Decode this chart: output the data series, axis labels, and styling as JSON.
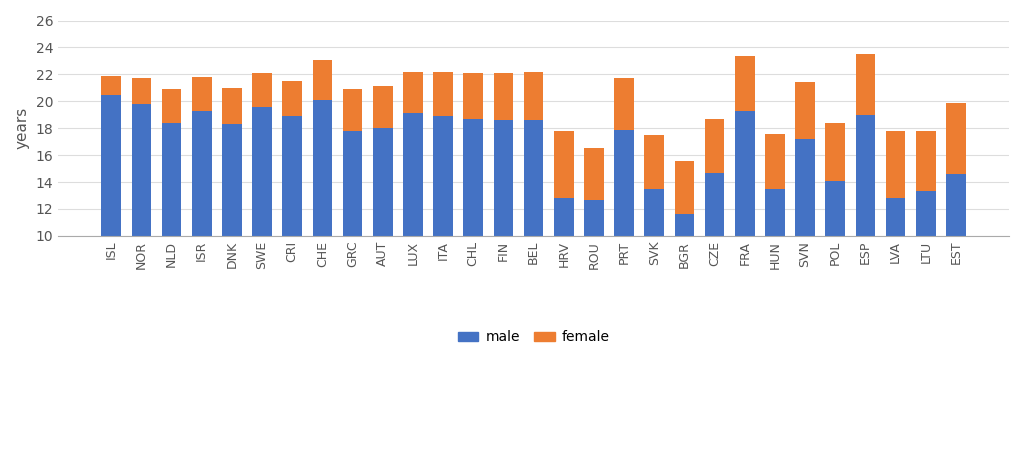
{
  "countries": [
    "ISL",
    "NOR",
    "NLD",
    "ISR",
    "DNK",
    "SWE",
    "CRI",
    "CHE",
    "GRC",
    "AUT",
    "LUX",
    "ITA",
    "CHL",
    "FIN",
    "BEL",
    "HRV",
    "ROU",
    "PRT",
    "SVK",
    "BGR",
    "CZE",
    "FRA",
    "HUN",
    "SVN",
    "POL",
    "ESP",
    "LVA",
    "LTU",
    "EST"
  ],
  "male": [
    20.5,
    19.8,
    18.4,
    19.3,
    18.3,
    19.6,
    18.9,
    20.1,
    17.8,
    18.0,
    19.1,
    18.9,
    18.7,
    18.6,
    18.6,
    12.8,
    12.7,
    17.9,
    13.5,
    11.6,
    14.7,
    19.3,
    13.5,
    17.2,
    14.1,
    19.0,
    12.8,
    13.3,
    14.6
  ],
  "female": [
    1.4,
    1.9,
    2.5,
    2.5,
    2.7,
    2.5,
    2.6,
    3.0,
    3.1,
    3.1,
    3.1,
    3.3,
    3.4,
    3.5,
    3.6,
    5.0,
    3.8,
    3.8,
    4.0,
    4.0,
    4.0,
    4.1,
    4.1,
    4.2,
    4.3,
    4.5,
    5.0,
    4.5,
    5.3
  ],
  "male_color": "#4472C4",
  "female_color": "#ED7D31",
  "ylim_min": 10,
  "ylim_max": 26,
  "yticks": [
    10,
    12,
    14,
    16,
    18,
    20,
    22,
    24,
    26
  ],
  "ylabel": "years",
  "background_color": "#ffffff",
  "legend_labels": [
    "male",
    "female"
  ],
  "bar_width": 0.65,
  "figsize": [
    10.24,
    4.51
  ],
  "dpi": 100
}
